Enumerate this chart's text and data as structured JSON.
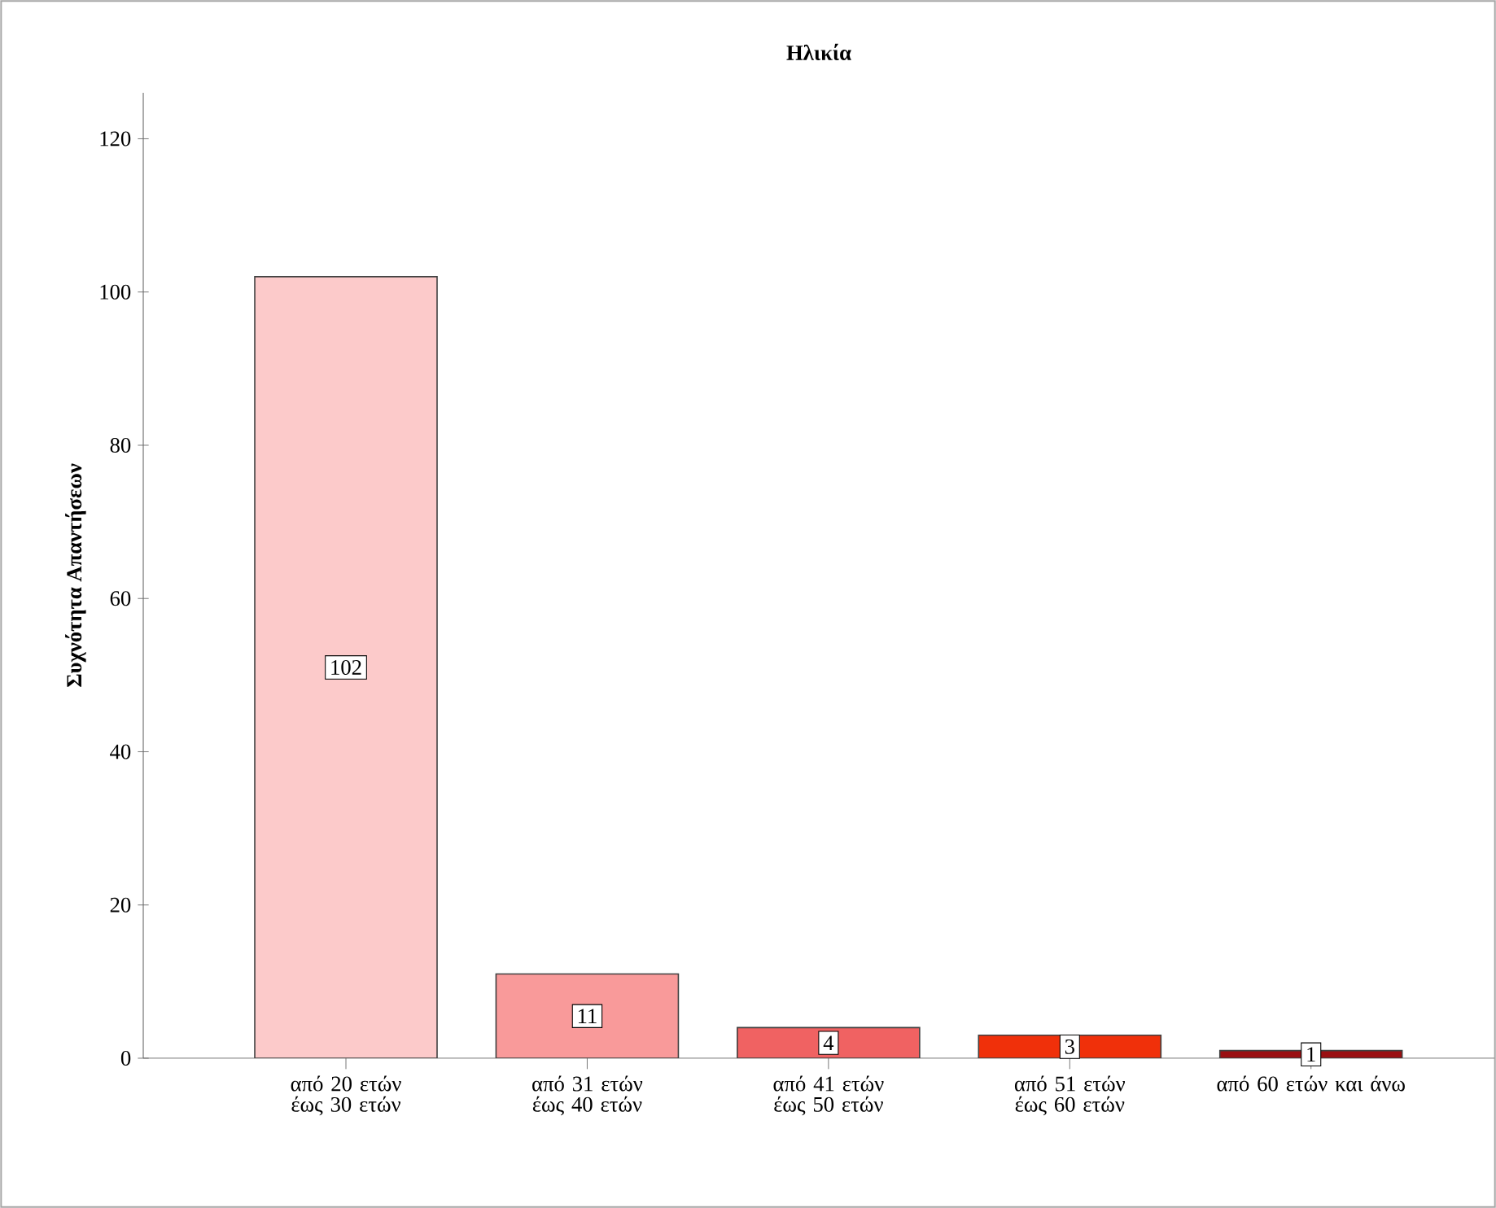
{
  "chart_data": {
    "type": "bar",
    "title": "Ηλικία",
    "ylabel": "Συχνότητα Απαντήσεων",
    "categories": [
      "από 20 ετών έως 30 ετών",
      "από 31 ετών έως 40 ετών",
      "από 41 ετών έως 50 ετών",
      "από 51 ετών έως 60 ετών",
      "από 60 ετών και άνω"
    ],
    "values": [
      102,
      11,
      4,
      3,
      1
    ],
    "colors": [
      "#fccaca",
      "#f99a9a",
      "#f06262",
      "#f0300a",
      "#9a0f12"
    ],
    "ylim": [
      0,
      126
    ],
    "yticks": [
      0,
      20,
      40,
      60,
      80,
      100,
      120
    ],
    "data_labels": true
  }
}
